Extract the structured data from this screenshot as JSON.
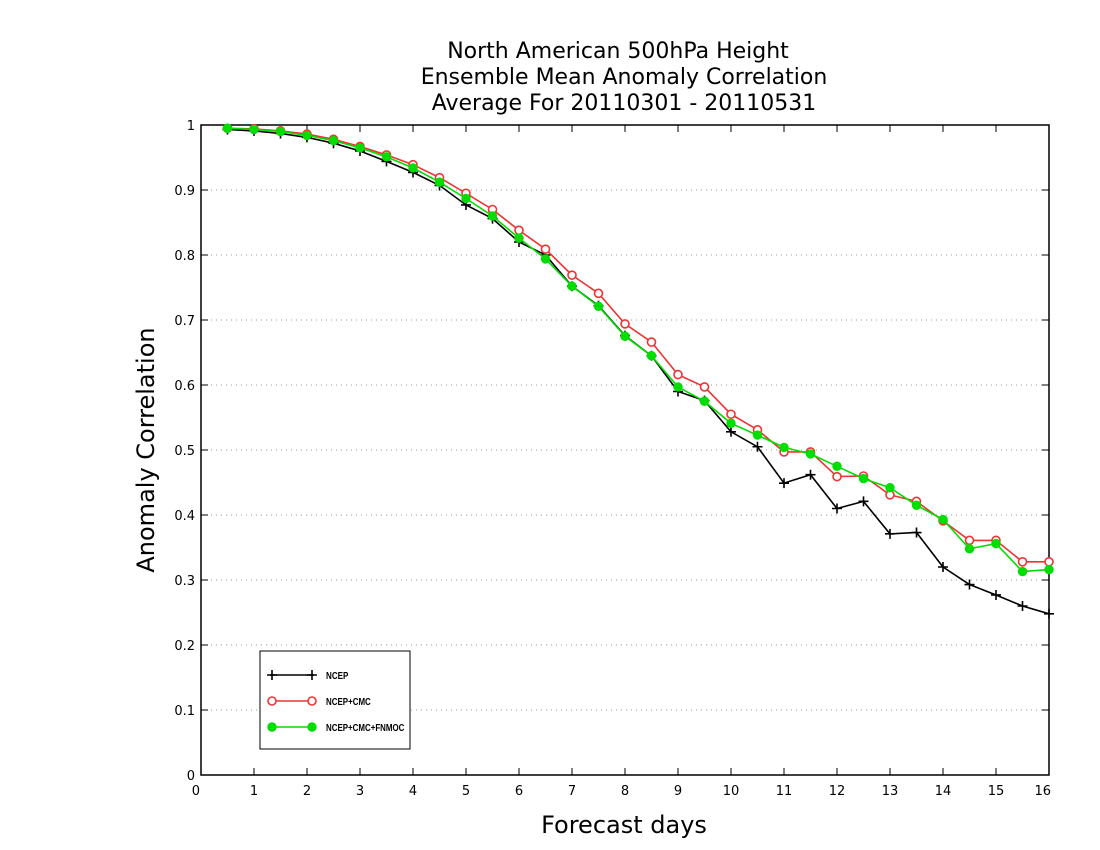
{
  "chart_data": {
    "type": "line",
    "title_lines": [
      "North American 500hPa Height",
      "Ensemble Mean Anomaly Correlation",
      "Average For 20110301 - 20110531"
    ],
    "xlabel": "Forecast days",
    "ylabel": "Anomaly Correlation",
    "xlim": [
      0,
      16
    ],
    "ylim": [
      0,
      1
    ],
    "x_ticks": [
      "0",
      "1",
      "2",
      "3",
      "4",
      "5",
      "6",
      "7",
      "8",
      "9",
      "10",
      "11",
      "12",
      "13",
      "14",
      "15",
      "16"
    ],
    "y_ticks": [
      "0",
      "0.1",
      "0.2",
      "0.3",
      "0.4",
      "0.5",
      "0.6",
      "0.7",
      "0.8",
      "0.9",
      "1"
    ],
    "grid": "horizontal dotted",
    "legend_position": "bottom-left",
    "x": [
      0.5,
      1,
      1.5,
      2,
      2.5,
      3,
      3.5,
      4,
      4.5,
      5,
      5.5,
      6,
      6.5,
      7,
      7.5,
      8,
      8.5,
      9,
      9.5,
      10,
      10.5,
      11,
      11.5,
      12,
      12.5,
      13,
      13.5,
      14,
      14.5,
      15,
      15.5,
      16
    ],
    "series": [
      {
        "name": "NCEP",
        "color": "#000000",
        "marker": "plus",
        "values": [
          0.993,
          0.991,
          0.987,
          0.981,
          0.972,
          0.96,
          0.944,
          0.927,
          0.907,
          0.877,
          0.856,
          0.82,
          0.8,
          0.752,
          0.722,
          0.676,
          0.645,
          0.59,
          0.576,
          0.528,
          0.505,
          0.449,
          0.462,
          0.41,
          0.421,
          0.371,
          0.373,
          0.32,
          0.293,
          0.277,
          0.26,
          0.248
        ]
      },
      {
        "name": "NCEP+CMC",
        "color": "#ee3333",
        "marker": "open-circle",
        "values": [
          0.995,
          0.994,
          0.991,
          0.986,
          0.978,
          0.967,
          0.954,
          0.939,
          0.919,
          0.895,
          0.87,
          0.838,
          0.809,
          0.769,
          0.741,
          0.694,
          0.666,
          0.616,
          0.597,
          0.555,
          0.531,
          0.497,
          0.497,
          0.459,
          0.46,
          0.431,
          0.421,
          0.391,
          0.361,
          0.361,
          0.328,
          0.328
        ]
      },
      {
        "name": "NCEP+CMC+FNMOC",
        "color": "#00dd00",
        "marker": "filled-circle",
        "values": [
          0.995,
          0.993,
          0.99,
          0.984,
          0.976,
          0.965,
          0.951,
          0.934,
          0.912,
          0.887,
          0.86,
          0.826,
          0.794,
          0.752,
          0.721,
          0.675,
          0.645,
          0.597,
          0.575,
          0.541,
          0.523,
          0.504,
          0.494,
          0.475,
          0.456,
          0.442,
          0.415,
          0.393,
          0.348,
          0.356,
          0.313,
          0.316
        ]
      }
    ]
  }
}
